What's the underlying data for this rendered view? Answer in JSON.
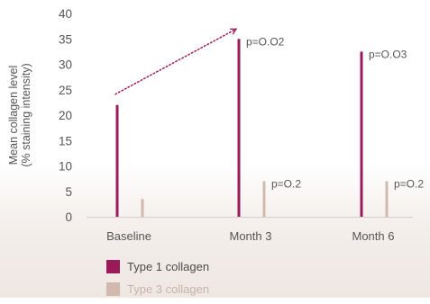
{
  "chart_data": {
    "type": "bar",
    "ylabel_lines": [
      "Mean collagen level",
      "(% staining intensity)"
    ],
    "ylim": [
      0,
      40
    ],
    "yticks": [
      0,
      5,
      10,
      15,
      20,
      25,
      30,
      35,
      40
    ],
    "categories": [
      "Baseline",
      "Month 3",
      "Month 6"
    ],
    "series": [
      {
        "name": "Type 1 collagen",
        "color": "#9b1b5a",
        "values": [
          22,
          35,
          32.5
        ]
      },
      {
        "name": "Type 3 collagen",
        "color": "#d2b9ae",
        "values": [
          3.5,
          7,
          7
        ]
      }
    ],
    "annotations": [
      {
        "series": 0,
        "category": 1,
        "text": "p=O.O2"
      },
      {
        "series": 0,
        "category": 2,
        "text": "p=O.O3"
      },
      {
        "series": 1,
        "category": 1,
        "text": "p=O.2"
      },
      {
        "series": 1,
        "category": 2,
        "text": "p=O.2"
      }
    ],
    "trend_arrow": {
      "series": 0,
      "from_category": 0,
      "to_category": 1,
      "color": "#9b1b5a",
      "style": "dotted"
    },
    "legend_position": "bottom-left",
    "grid": false
  }
}
